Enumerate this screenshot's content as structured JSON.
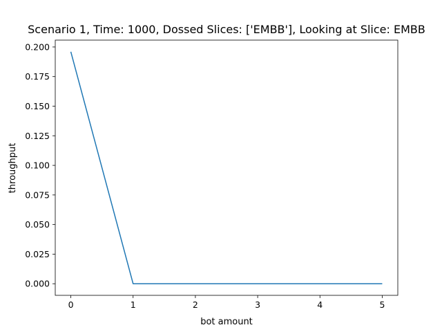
{
  "chart_data": {
    "type": "line",
    "title": "Scenario 1, Time: 1000, Dossed Slices: ['EMBB'], Looking at Slice: EMBB",
    "xlabel": "bot amount",
    "ylabel": "throughput",
    "x": [
      0,
      1,
      2,
      3,
      4,
      5
    ],
    "series": [
      {
        "values": [
          0.196,
          0.0,
          0.0,
          0.0,
          0.0,
          0.0
        ],
        "color": "#1f77b4"
      }
    ],
    "xlim": [
      -0.25,
      5.25
    ],
    "ylim": [
      -0.0098,
      0.2058
    ],
    "xticks": [
      0,
      1,
      2,
      3,
      4,
      5
    ],
    "xtick_labels": [
      "0",
      "1",
      "2",
      "3",
      "4",
      "5"
    ],
    "yticks": [
      0.0,
      0.025,
      0.05,
      0.075,
      0.1,
      0.125,
      0.15,
      0.175,
      0.2
    ],
    "ytick_labels": [
      "0.000",
      "0.025",
      "0.050",
      "0.075",
      "0.100",
      "0.125",
      "0.150",
      "0.175",
      "0.200"
    ],
    "grid": false,
    "legend": "none"
  }
}
